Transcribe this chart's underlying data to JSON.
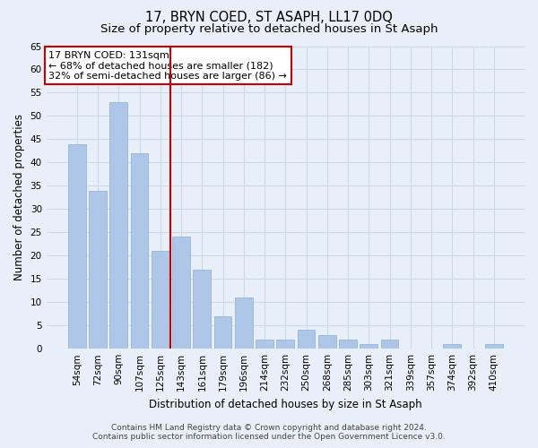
{
  "title": "17, BRYN COED, ST ASAPH, LL17 0DQ",
  "subtitle": "Size of property relative to detached houses in St Asaph",
  "xlabel": "Distribution of detached houses by size in St Asaph",
  "ylabel": "Number of detached properties",
  "categories": [
    "54sqm",
    "72sqm",
    "90sqm",
    "107sqm",
    "125sqm",
    "143sqm",
    "161sqm",
    "179sqm",
    "196sqm",
    "214sqm",
    "232sqm",
    "250sqm",
    "268sqm",
    "285sqm",
    "303sqm",
    "321sqm",
    "339sqm",
    "357sqm",
    "374sqm",
    "392sqm",
    "410sqm"
  ],
  "values": [
    44,
    34,
    53,
    42,
    21,
    24,
    17,
    7,
    11,
    2,
    2,
    4,
    3,
    2,
    1,
    2,
    0,
    0,
    1,
    0,
    1
  ],
  "bar_color": "#aec6e8",
  "bar_edge_color": "#8ab0d0",
  "grid_color": "#c8d8e8",
  "background_color": "#e8eff8",
  "vline_x_index": 4.5,
  "vline_color": "#cc0000",
  "annotation_title": "17 BRYN COED: 131sqm",
  "annotation_line1": "← 68% of detached houses are smaller (182)",
  "annotation_line2": "32% of semi-detached houses are larger (86) →",
  "annotation_box_color": "#ffffff",
  "annotation_box_edge": "#cc0000",
  "ylim": [
    0,
    65
  ],
  "yticks": [
    0,
    5,
    10,
    15,
    20,
    25,
    30,
    35,
    40,
    45,
    50,
    55,
    60,
    65
  ],
  "footer_line1": "Contains HM Land Registry data © Crown copyright and database right 2024.",
  "footer_line2": "Contains public sector information licensed under the Open Government Licence v3.0.",
  "title_fontsize": 10.5,
  "subtitle_fontsize": 9.5,
  "axis_label_fontsize": 8.5,
  "tick_fontsize": 7.5,
  "annotation_fontsize": 8,
  "footer_fontsize": 6.5
}
